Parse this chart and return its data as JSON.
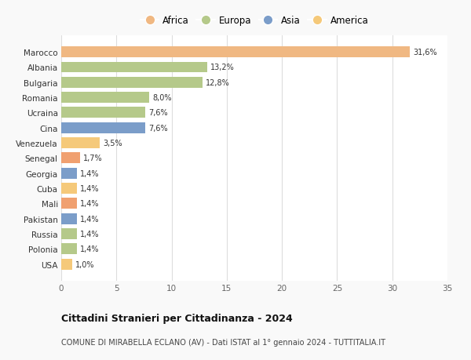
{
  "categories": [
    "USA",
    "Polonia",
    "Russia",
    "Pakistan",
    "Mali",
    "Cuba",
    "Georgia",
    "Senegal",
    "Venezuela",
    "Cina",
    "Ucraina",
    "Romania",
    "Bulgaria",
    "Albania",
    "Marocco"
  ],
  "values": [
    1.0,
    1.4,
    1.4,
    1.4,
    1.4,
    1.4,
    1.4,
    1.7,
    3.5,
    7.6,
    7.6,
    8.0,
    12.8,
    13.2,
    31.6
  ],
  "labels": [
    "1,0%",
    "1,4%",
    "1,4%",
    "1,4%",
    "1,4%",
    "1,4%",
    "1,4%",
    "1,7%",
    "3,5%",
    "7,6%",
    "7,6%",
    "8,0%",
    "12,8%",
    "13,2%",
    "31,6%"
  ],
  "colors": [
    "#f5c97a",
    "#b5c98a",
    "#b5c98a",
    "#7b9dc9",
    "#f0a070",
    "#f5c97a",
    "#7b9dc9",
    "#f0a070",
    "#f5c97a",
    "#7b9dc9",
    "#b5c98a",
    "#b5c98a",
    "#b5c98a",
    "#b5c98a",
    "#f0b882"
  ],
  "continent": [
    "America",
    "Europa",
    "Europa",
    "Asia",
    "Africa",
    "America",
    "Asia",
    "Africa",
    "America",
    "Asia",
    "Europa",
    "Europa",
    "Europa",
    "Europa",
    "Africa"
  ],
  "legend_labels": [
    "Africa",
    "Europa",
    "Asia",
    "America"
  ],
  "legend_colors": [
    "#f0b882",
    "#b5c98a",
    "#7b9dc9",
    "#f5c97a"
  ],
  "title": "Cittadini Stranieri per Cittadinanza - 2024",
  "subtitle": "COMUNE DI MIRABELLA ECLANO (AV) - Dati ISTAT al 1° gennaio 2024 - TUTTITALIA.IT",
  "xlim": [
    0,
    35
  ],
  "xticks": [
    0,
    5,
    10,
    15,
    20,
    25,
    30,
    35
  ],
  "background_color": "#f9f9f9",
  "bar_background": "#ffffff",
  "grid_color": "#dddddd"
}
